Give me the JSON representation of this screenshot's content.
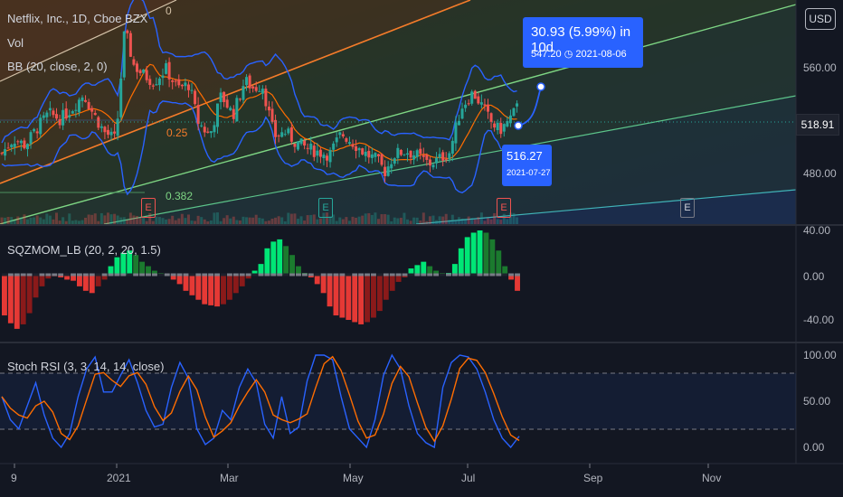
{
  "header": {
    "title": "Netflix, Inc., 1D, Cboe BZX",
    "vol_label": "Vol",
    "bb_label": "BB (20, close, 2, 0)"
  },
  "currency_button": "USD",
  "last_price": "518.91",
  "forecast": {
    "change": "30.93 (5.99%) in 10d",
    "target_price": "547.20",
    "target_date": "2021-08-06"
  },
  "point_label": {
    "price": "516.27",
    "date": "2021-07-27"
  },
  "fib_labels": {
    "top": "0",
    "mid": "0.25",
    "low": "0.382"
  },
  "earnings_marker": "E",
  "price_axis": [
    "560.00",
    "520.00",
    "480.00"
  ],
  "sqz_label": "SQZMOM_LB (20, 2, 20, 1.5)",
  "sqz_axis": [
    "40.00",
    "0.00",
    "-40.00"
  ],
  "stoch_label": "Stoch RSI (3, 3, 14, 14, close)",
  "stoch_axis": [
    "100.00",
    "50.00",
    "0.00"
  ],
  "time_axis": [
    "9",
    "2021",
    "Mar",
    "May",
    "Jul",
    "Sep",
    "Nov"
  ],
  "chart_data": [
    {
      "type": "line",
      "title": "Netflix, Inc., 1D, Cboe BZX",
      "x_range": [
        "2020-11-05",
        "2021-12-05"
      ],
      "ylim": [
        455,
        590
      ],
      "price_approx": [
        [
          0,
          496
        ],
        [
          8,
          507
        ],
        [
          16,
          502
        ],
        [
          24,
          515
        ],
        [
          32,
          526
        ],
        [
          40,
          522
        ],
        [
          48,
          530
        ],
        [
          56,
          541
        ],
        [
          62,
          527
        ],
        [
          70,
          512
        ],
        [
          78,
          506
        ],
        [
          84,
          590
        ],
        [
          90,
          563
        ],
        [
          96,
          556
        ],
        [
          104,
          550
        ],
        [
          112,
          560
        ],
        [
          120,
          545
        ],
        [
          128,
          548
        ],
        [
          134,
          520
        ],
        [
          142,
          509
        ],
        [
          150,
          540
        ],
        [
          158,
          525
        ],
        [
          166,
          551
        ],
        [
          172,
          545
        ],
        [
          178,
          548
        ],
        [
          186,
          509
        ],
        [
          194,
          512
        ],
        [
          200,
          505
        ],
        [
          208,
          500
        ],
        [
          216,
          497
        ],
        [
          224,
          495
        ],
        [
          232,
          511
        ],
        [
          240,
          504
        ],
        [
          248,
          496
        ],
        [
          256,
          491
        ],
        [
          262,
          482
        ],
        [
          268,
          495
        ],
        [
          276,
          498
        ],
        [
          284,
          494
        ],
        [
          292,
          488
        ],
        [
          298,
          491
        ],
        [
          306,
          497
        ],
        [
          314,
          531
        ],
        [
          322,
          542
        ],
        [
          328,
          532
        ],
        [
          334,
          520
        ],
        [
          340,
          513
        ],
        [
          346,
          520
        ],
        [
          352,
          530
        ]
      ],
      "series": [
        {
          "name": "BB (20, close, 2, 0)"
        }
      ]
    },
    {
      "type": "bar",
      "title": "SQZMOM_LB (20, 2, 20, 1.5)",
      "ylim": [
        -55,
        45
      ],
      "values_approx": [
        -36,
        -43,
        -48,
        -44,
        -34,
        -20,
        -10,
        -3,
        -1,
        -2,
        -4,
        -5,
        -10,
        -14,
        -16,
        -10,
        -4,
        8,
        16,
        20,
        22,
        18,
        12,
        8,
        4,
        2,
        1,
        -4,
        -8,
        -14,
        -18,
        -22,
        -26,
        -27,
        -28,
        -26,
        -22,
        -16,
        -10,
        -3,
        4,
        10,
        24,
        30,
        32,
        26,
        18,
        8,
        2,
        -2,
        -8,
        -16,
        -28,
        -36,
        -38,
        -40,
        -42,
        -44,
        -42,
        -38,
        -32,
        -22,
        -14,
        -6,
        -2,
        6,
        9,
        12,
        8,
        4,
        2,
        2,
        10,
        24,
        34,
        38,
        40,
        38,
        32,
        22,
        8,
        -4,
        -14
      ]
    },
    {
      "type": "line",
      "title": "Stoch RSI (3, 3, 14, 14, close)",
      "ylim": [
        0,
        100
      ],
      "bands": [
        20,
        80
      ],
      "series": [
        {
          "name": "K"
        },
        {
          "name": "D"
        }
      ],
      "k_values_approx": [
        55,
        30,
        20,
        45,
        70,
        35,
        10,
        0,
        15,
        55,
        85,
        98,
        60,
        60,
        78,
        95,
        70,
        40,
        22,
        25,
        65,
        92,
        75,
        20,
        3,
        10,
        40,
        30,
        65,
        85,
        70,
        25,
        10,
        55,
        15,
        22,
        72,
        100,
        100,
        95,
        55,
        20,
        10,
        0,
        30,
        78,
        100,
        85,
        45,
        15,
        5,
        0,
        65,
        92,
        100,
        98,
        85,
        60,
        30,
        10,
        0,
        12
      ]
    }
  ]
}
